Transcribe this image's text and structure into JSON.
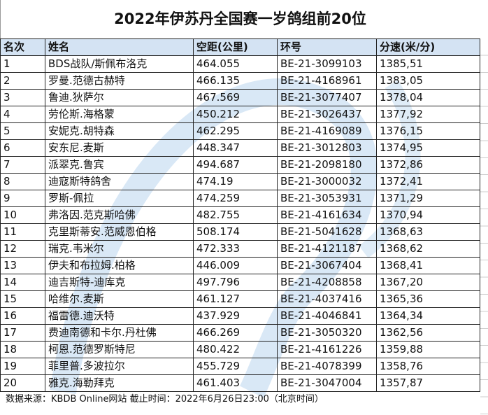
{
  "title": "2022年伊苏丹全国赛一岁鸽组前20位",
  "columns": [
    "名次",
    "姓名",
    "空距(公里)",
    "环号",
    "分速(米/分)"
  ],
  "rows": [
    [
      "1",
      "BDS战队/斯佩布洛克",
      "464.055",
      "BE-21-3099103",
      "1385,51"
    ],
    [
      "2",
      "罗曼.范德古赫特",
      "466.135",
      "BE-21-4168961",
      "1383,05"
    ],
    [
      "3",
      "鲁迪.狄萨尔",
      "467.569",
      "BE-21-3077407",
      "1378,04"
    ],
    [
      "4",
      "劳伦斯.海格蒙",
      "450.212",
      "BE-21-3026437",
      "1377,92"
    ],
    [
      "5",
      "安妮克.胡特森",
      "462.295",
      "BE-21-4169089",
      "1376,15"
    ],
    [
      "6",
      "安东尼.麦斯",
      "448.347",
      "BE-21-3012803",
      "1374,95"
    ],
    [
      "7",
      "派翠克.鲁宾",
      "494.687",
      "BE-21-2098180",
      "1372,86"
    ],
    [
      "8",
      "迪寇斯特鸽舍",
      "474.19",
      "BE-21-3000032",
      "1372,41"
    ],
    [
      "9",
      "罗斯-佩拉",
      "474.259",
      "BE-21-3053931",
      "1371,29"
    ],
    [
      "10",
      "弗洛因.范克斯哈佛",
      "482.755",
      "BE-21-4161634",
      "1370,94"
    ],
    [
      "11",
      "克里斯蒂安.范威恩伯格",
      "508.174",
      "BE-21-5041628",
      "1368,63"
    ],
    [
      "12",
      "瑞克.韦米尔",
      "472.333",
      "BE-21-4121187",
      "1368,62"
    ],
    [
      "13",
      "伊夫和布拉姆.柏格",
      "446.009",
      "BE-21-3067404",
      "1368,41"
    ],
    [
      "14",
      "迪吉斯特-迪库克",
      "497.796",
      "BE-21-4208858",
      "1367,20"
    ],
    [
      "15",
      "哈维尔.麦斯",
      "461.127",
      "BE-21-4037416",
      "1365,36"
    ],
    [
      "16",
      "福雷德.迪沃特",
      "437.929",
      "BE-21-4046841",
      "1364,34"
    ],
    [
      "17",
      "费迪南德和卡尔.丹杜佛",
      "466.269",
      "BE-21-3050320",
      "1362,56"
    ],
    [
      "18",
      "柯恩.范德罗斯特尼",
      "480.422",
      "BE-21-4161226",
      "1359,88"
    ],
    [
      "19",
      "菲里普.多波拉尔",
      "455.729",
      "BE-21-4078399",
      "1358,76"
    ],
    [
      "20",
      "雅克.海勒拜克",
      "461.403",
      "BE-21-3047004",
      "1357,87"
    ]
  ],
  "footer": "数据来源：KBDB Online网站  截止时间：2022年6月26日23:00（北京时间）",
  "colors": {
    "header_bg": "#d4e3f3",
    "watermark": "#a9cbe8"
  }
}
